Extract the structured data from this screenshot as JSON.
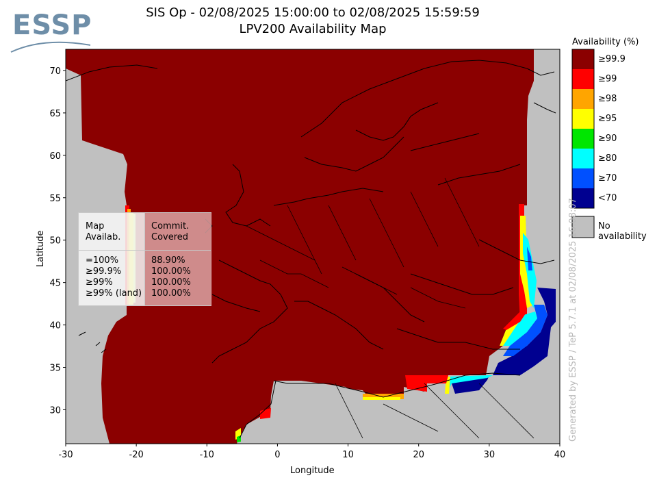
{
  "header": {
    "title_line1": "SIS Op - 02/08/2025 15:00:00 to 02/08/2025 15:59:59",
    "title_line2": "LPV200 Availability Map"
  },
  "logo": {
    "text": "ESSP"
  },
  "axes": {
    "xlabel": "Longitude",
    "ylabel": "Latitude",
    "xticks": [
      "-30",
      "-20",
      "-10",
      "0",
      "10",
      "20",
      "30",
      "40"
    ],
    "yticks": [
      "30",
      "35",
      "40",
      "45",
      "50",
      "55",
      "60",
      "65",
      "70"
    ]
  },
  "legend": {
    "title": "Availability (%)",
    "items": [
      {
        "label": "≥99.9",
        "color": "#8b0000"
      },
      {
        "label": "≥99",
        "color": "#ff0000"
      },
      {
        "label": "≥98",
        "color": "#ffa500"
      },
      {
        "label": "≥95",
        "color": "#ffff00"
      },
      {
        "label": "≥90",
        "color": "#00e600"
      },
      {
        "label": "≥80",
        "color": "#00ffff"
      },
      {
        "label": "≥70",
        "color": "#0050ff"
      },
      {
        "label": "<70",
        "color": "#000090"
      }
    ],
    "no_availability": {
      "label": "No availability",
      "color": "#c0c0c0"
    }
  },
  "stats": {
    "col1_header": [
      "Map",
      "Availab."
    ],
    "col2_header": [
      "Commit.",
      "Covered"
    ],
    "rows": [
      {
        "label": "=100%",
        "value": "88.90%"
      },
      {
        "label": "≥99.9%",
        "value": "100.00%"
      },
      {
        "label": "≥99%",
        "value": "100.00%"
      },
      {
        "label": "≥99% (land)",
        "value": "100.00%"
      }
    ]
  },
  "watermark": "Generated by ESSP / TeP 5.7.1 at 02/08/2025 16:08:07",
  "map_data": {
    "lon_range": [
      -30,
      40
    ],
    "lat_range": [
      26,
      72.5
    ]
  }
}
